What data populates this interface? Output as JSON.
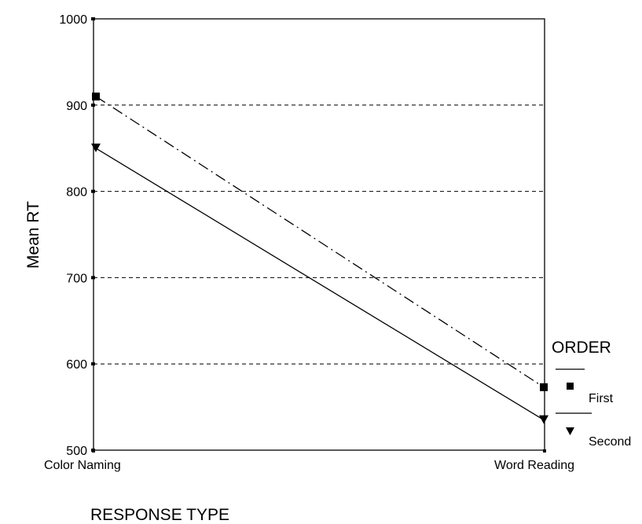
{
  "chart_data": {
    "type": "line",
    "title": "",
    "xlabel": "RESPONSE TYPE",
    "ylabel": "Mean RT",
    "categories": [
      "Color Naming",
      "Word Reading"
    ],
    "ylim": [
      500,
      1000
    ],
    "yticks": [
      500,
      600,
      700,
      800,
      900,
      1000
    ],
    "grid": "horizontal-dashed",
    "legend": {
      "title": "ORDER",
      "placement": "right"
    },
    "series": [
      {
        "name": "First",
        "values": [
          910,
          573
        ],
        "marker": "square",
        "line_style": "dash-dot",
        "color": "#000000"
      },
      {
        "name": "Second",
        "values": [
          850,
          535
        ],
        "marker": "triangle-down",
        "line_style": "solid",
        "color": "#000000"
      }
    ]
  }
}
